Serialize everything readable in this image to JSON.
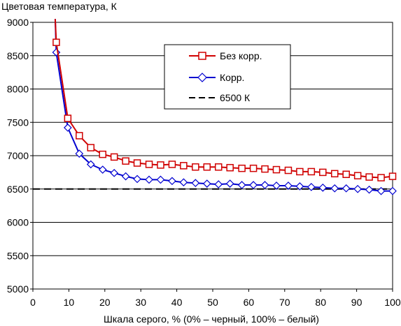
{
  "chart_data": {
    "type": "line",
    "ylabel": "Цветовая температура, К",
    "xlabel": "Шкала серого, % (0% – черный, 100% – белый)",
    "xlim": [
      0,
      100
    ],
    "ylim": [
      5000,
      9000
    ],
    "xticks": [
      0,
      10,
      20,
      30,
      40,
      50,
      60,
      70,
      80,
      90,
      100
    ],
    "yticks": [
      5000,
      5500,
      6000,
      6500,
      7000,
      7500,
      8000,
      8500,
      9000
    ],
    "grid": "horizontal",
    "legend_position": "top-right",
    "series": [
      {
        "name": "Без корр.",
        "color": "#d00000",
        "marker": "square",
        "line_style": "solid",
        "x": [
          6.2,
          6.5,
          9.7,
          12.9,
          16.1,
          19.4,
          22.6,
          25.8,
          29.0,
          32.3,
          35.5,
          38.7,
          41.9,
          45.2,
          48.4,
          51.6,
          54.8,
          58.1,
          61.3,
          64.5,
          67.7,
          71.0,
          74.2,
          77.4,
          80.6,
          83.9,
          87.1,
          90.3,
          93.5,
          96.8,
          100
        ],
        "y": [
          9050,
          8700,
          7560,
          7300,
          7120,
          7020,
          6980,
          6920,
          6890,
          6870,
          6860,
          6870,
          6850,
          6830,
          6830,
          6830,
          6820,
          6810,
          6810,
          6800,
          6790,
          6780,
          6760,
          6760,
          6750,
          6730,
          6720,
          6700,
          6680,
          6670,
          6690
        ],
        "markers_from_index": 1
      },
      {
        "name": "Корр.",
        "color": "#0000d0",
        "marker": "diamond",
        "line_style": "solid",
        "x": [
          6.2,
          6.5,
          9.7,
          12.9,
          16.1,
          19.4,
          22.6,
          25.8,
          29.0,
          32.3,
          35.5,
          38.7,
          41.9,
          45.2,
          48.4,
          51.6,
          54.8,
          58.1,
          61.3,
          64.5,
          67.7,
          71.0,
          74.2,
          77.4,
          80.6,
          83.9,
          87.1,
          90.3,
          93.5,
          96.8,
          100
        ],
        "y": [
          9050,
          8550,
          7420,
          7030,
          6870,
          6790,
          6740,
          6690,
          6650,
          6640,
          6640,
          6620,
          6600,
          6590,
          6580,
          6570,
          6580,
          6560,
          6560,
          6560,
          6550,
          6550,
          6540,
          6530,
          6520,
          6510,
          6510,
          6500,
          6490,
          6470,
          6470
        ],
        "markers_from_index": 1
      },
      {
        "name": "6500 К",
        "color": "#000000",
        "marker": "none",
        "line_style": "dashed",
        "x": [
          0,
          100
        ],
        "y": [
          6500,
          6500
        ]
      }
    ]
  }
}
